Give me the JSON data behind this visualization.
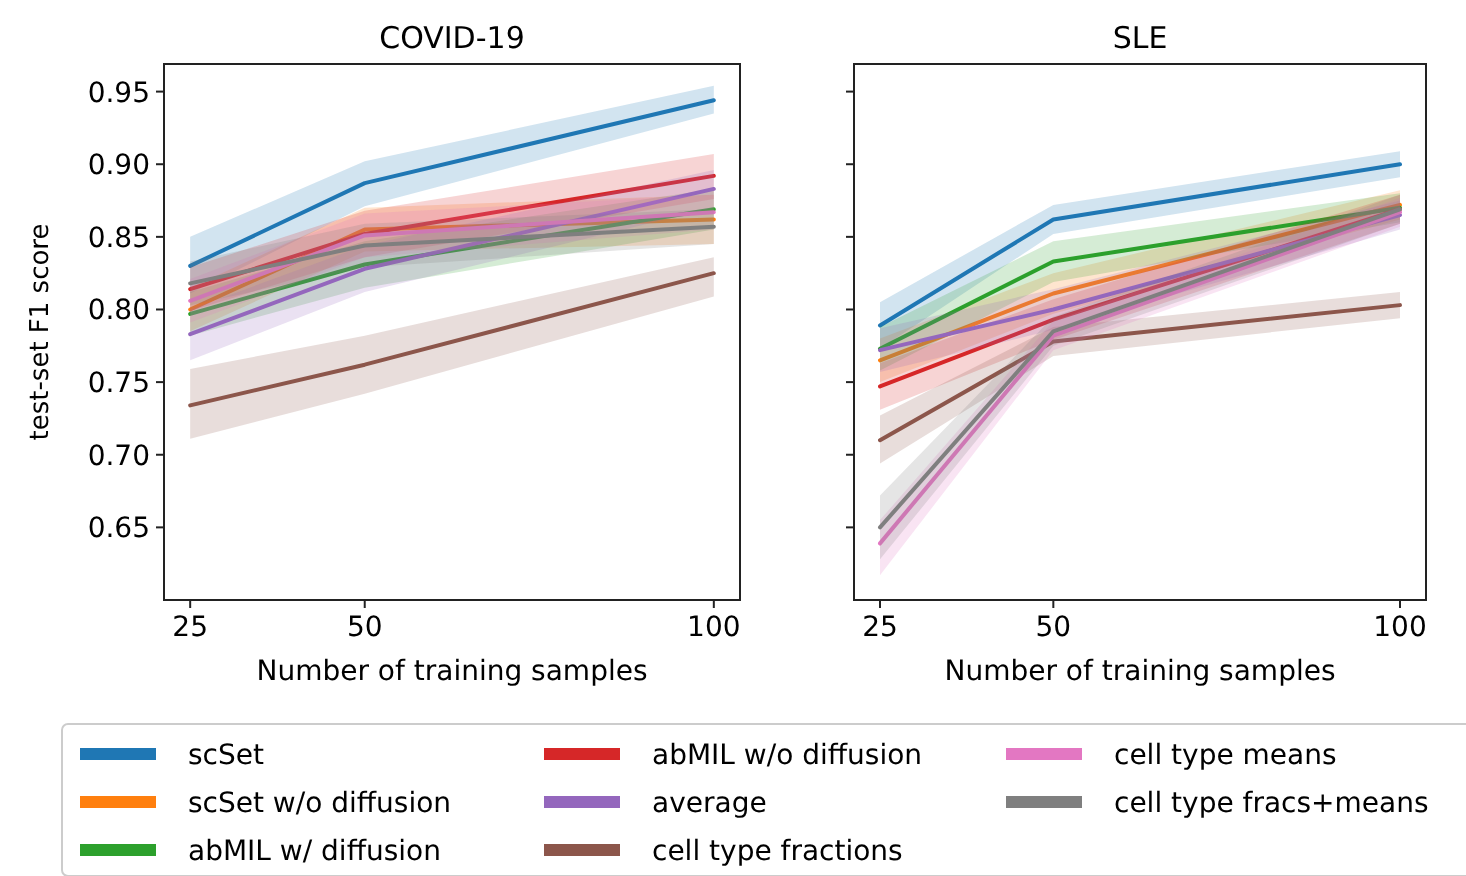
{
  "chart_data": [
    {
      "type": "line",
      "title": "COVID-19",
      "xlabel": "Number of training samples",
      "ylabel": "test-set F1 score",
      "x": [
        25,
        50,
        100
      ],
      "xlim": [
        21.25,
        103.75
      ],
      "xticks": [
        25,
        50,
        100
      ],
      "ylim": [
        0.6,
        0.969
      ],
      "yticks": [
        {
          "value": 0.65,
          "label": "0.65"
        },
        {
          "value": 0.7,
          "label": "0.70"
        },
        {
          "value": 0.75,
          "label": "0.75"
        },
        {
          "value": 0.8,
          "label": "0.80"
        },
        {
          "value": 0.85,
          "label": "0.85"
        },
        {
          "value": 0.9,
          "label": "0.90"
        },
        {
          "value": 0.95,
          "label": "0.95"
        }
      ],
      "grid": false,
      "legend": "bottom",
      "line_style": "solid",
      "marker": "none",
      "series": [
        {
          "name": "scSet",
          "color": "#1f77b4",
          "values": [
            0.83,
            0.887,
            0.944
          ],
          "lower": [
            0.811,
            0.871,
            0.935
          ],
          "upper": [
            0.85,
            0.902,
            0.954
          ]
        },
        {
          "name": "scSet w/o diffusion",
          "color": "#ff7f0e",
          "values": [
            0.8,
            0.855,
            0.862
          ],
          "lower": [
            0.785,
            0.84,
            0.845
          ],
          "upper": [
            0.815,
            0.87,
            0.879
          ]
        },
        {
          "name": "abMIL w/ diffusion",
          "color": "#2ca02c",
          "values": [
            0.797,
            0.831,
            0.869
          ],
          "lower": [
            0.782,
            0.815,
            0.855
          ],
          "upper": [
            0.812,
            0.847,
            0.883
          ]
        },
        {
          "name": "abMIL w/o diffusion",
          "color": "#d62728",
          "values": [
            0.814,
            0.852,
            0.892
          ],
          "lower": [
            0.799,
            0.836,
            0.876
          ],
          "upper": [
            0.829,
            0.868,
            0.907
          ]
        },
        {
          "name": "average",
          "color": "#9467bd",
          "values": [
            0.783,
            0.828,
            0.883
          ],
          "lower": [
            0.765,
            0.812,
            0.87
          ],
          "upper": [
            0.8,
            0.844,
            0.896
          ]
        },
        {
          "name": "cell type fractions",
          "color": "#8c564b",
          "values": [
            0.734,
            0.762,
            0.825
          ],
          "lower": [
            0.711,
            0.742,
            0.809
          ],
          "upper": [
            0.759,
            0.782,
            0.836
          ]
        },
        {
          "name": "cell type means",
          "color": "#e377c2",
          "values": [
            0.806,
            0.851,
            0.867
          ],
          "lower": [
            0.791,
            0.836,
            0.855
          ],
          "upper": [
            0.821,
            0.866,
            0.879
          ]
        },
        {
          "name": "cell type fracs+means",
          "color": "#7f7f7f",
          "values": [
            0.818,
            0.844,
            0.857
          ],
          "lower": [
            0.803,
            0.829,
            0.845
          ],
          "upper": [
            0.833,
            0.859,
            0.869
          ]
        }
      ]
    },
    {
      "type": "line",
      "title": "SLE",
      "xlabel": "Number of training samples",
      "x": [
        25,
        50,
        100
      ],
      "xlim": [
        21.25,
        103.75
      ],
      "xticks": [
        25,
        50,
        100
      ],
      "ylim": [
        0.6,
        0.969
      ],
      "yticks": [
        0.65,
        0.7,
        0.75,
        0.8,
        0.85,
        0.9,
        0.95
      ],
      "tick_labels": "x",
      "grid": false,
      "line_style": "solid",
      "marker": "none",
      "series": [
        {
          "color": "#1f77b4",
          "values": [
            0.789,
            0.862,
            0.9
          ],
          "lower": [
            0.773,
            0.852,
            0.891
          ],
          "upper": [
            0.805,
            0.872,
            0.909
          ]
        },
        {
          "color": "#ff7f0e",
          "values": [
            0.765,
            0.811,
            0.872
          ],
          "lower": [
            0.75,
            0.797,
            0.862
          ],
          "upper": [
            0.78,
            0.825,
            0.882
          ]
        },
        {
          "color": "#2ca02c",
          "values": [
            0.773,
            0.833,
            0.87
          ],
          "lower": [
            0.758,
            0.819,
            0.86
          ],
          "upper": [
            0.788,
            0.847,
            0.88
          ]
        },
        {
          "color": "#d62728",
          "values": [
            0.747,
            0.793,
            0.869
          ],
          "lower": [
            0.731,
            0.779,
            0.859
          ],
          "upper": [
            0.763,
            0.807,
            0.879
          ]
        },
        {
          "color": "#9467bd",
          "values": [
            0.772,
            0.8,
            0.865
          ],
          "lower": [
            0.757,
            0.786,
            0.855
          ],
          "upper": [
            0.787,
            0.814,
            0.875
          ]
        },
        {
          "color": "#8c564b",
          "values": [
            0.71,
            0.778,
            0.803
          ],
          "lower": [
            0.694,
            0.768,
            0.794
          ],
          "upper": [
            0.727,
            0.788,
            0.812
          ]
        },
        {
          "color": "#e377c2",
          "values": [
            0.639,
            0.782,
            0.867
          ],
          "lower": [
            0.617,
            0.772,
            0.857
          ],
          "upper": [
            0.655,
            0.792,
            0.877
          ]
        },
        {
          "color": "#7f7f7f",
          "values": [
            0.65,
            0.785,
            0.869
          ],
          "lower": [
            0.628,
            0.775,
            0.859
          ],
          "upper": [
            0.672,
            0.795,
            0.879
          ]
        }
      ]
    }
  ]
}
